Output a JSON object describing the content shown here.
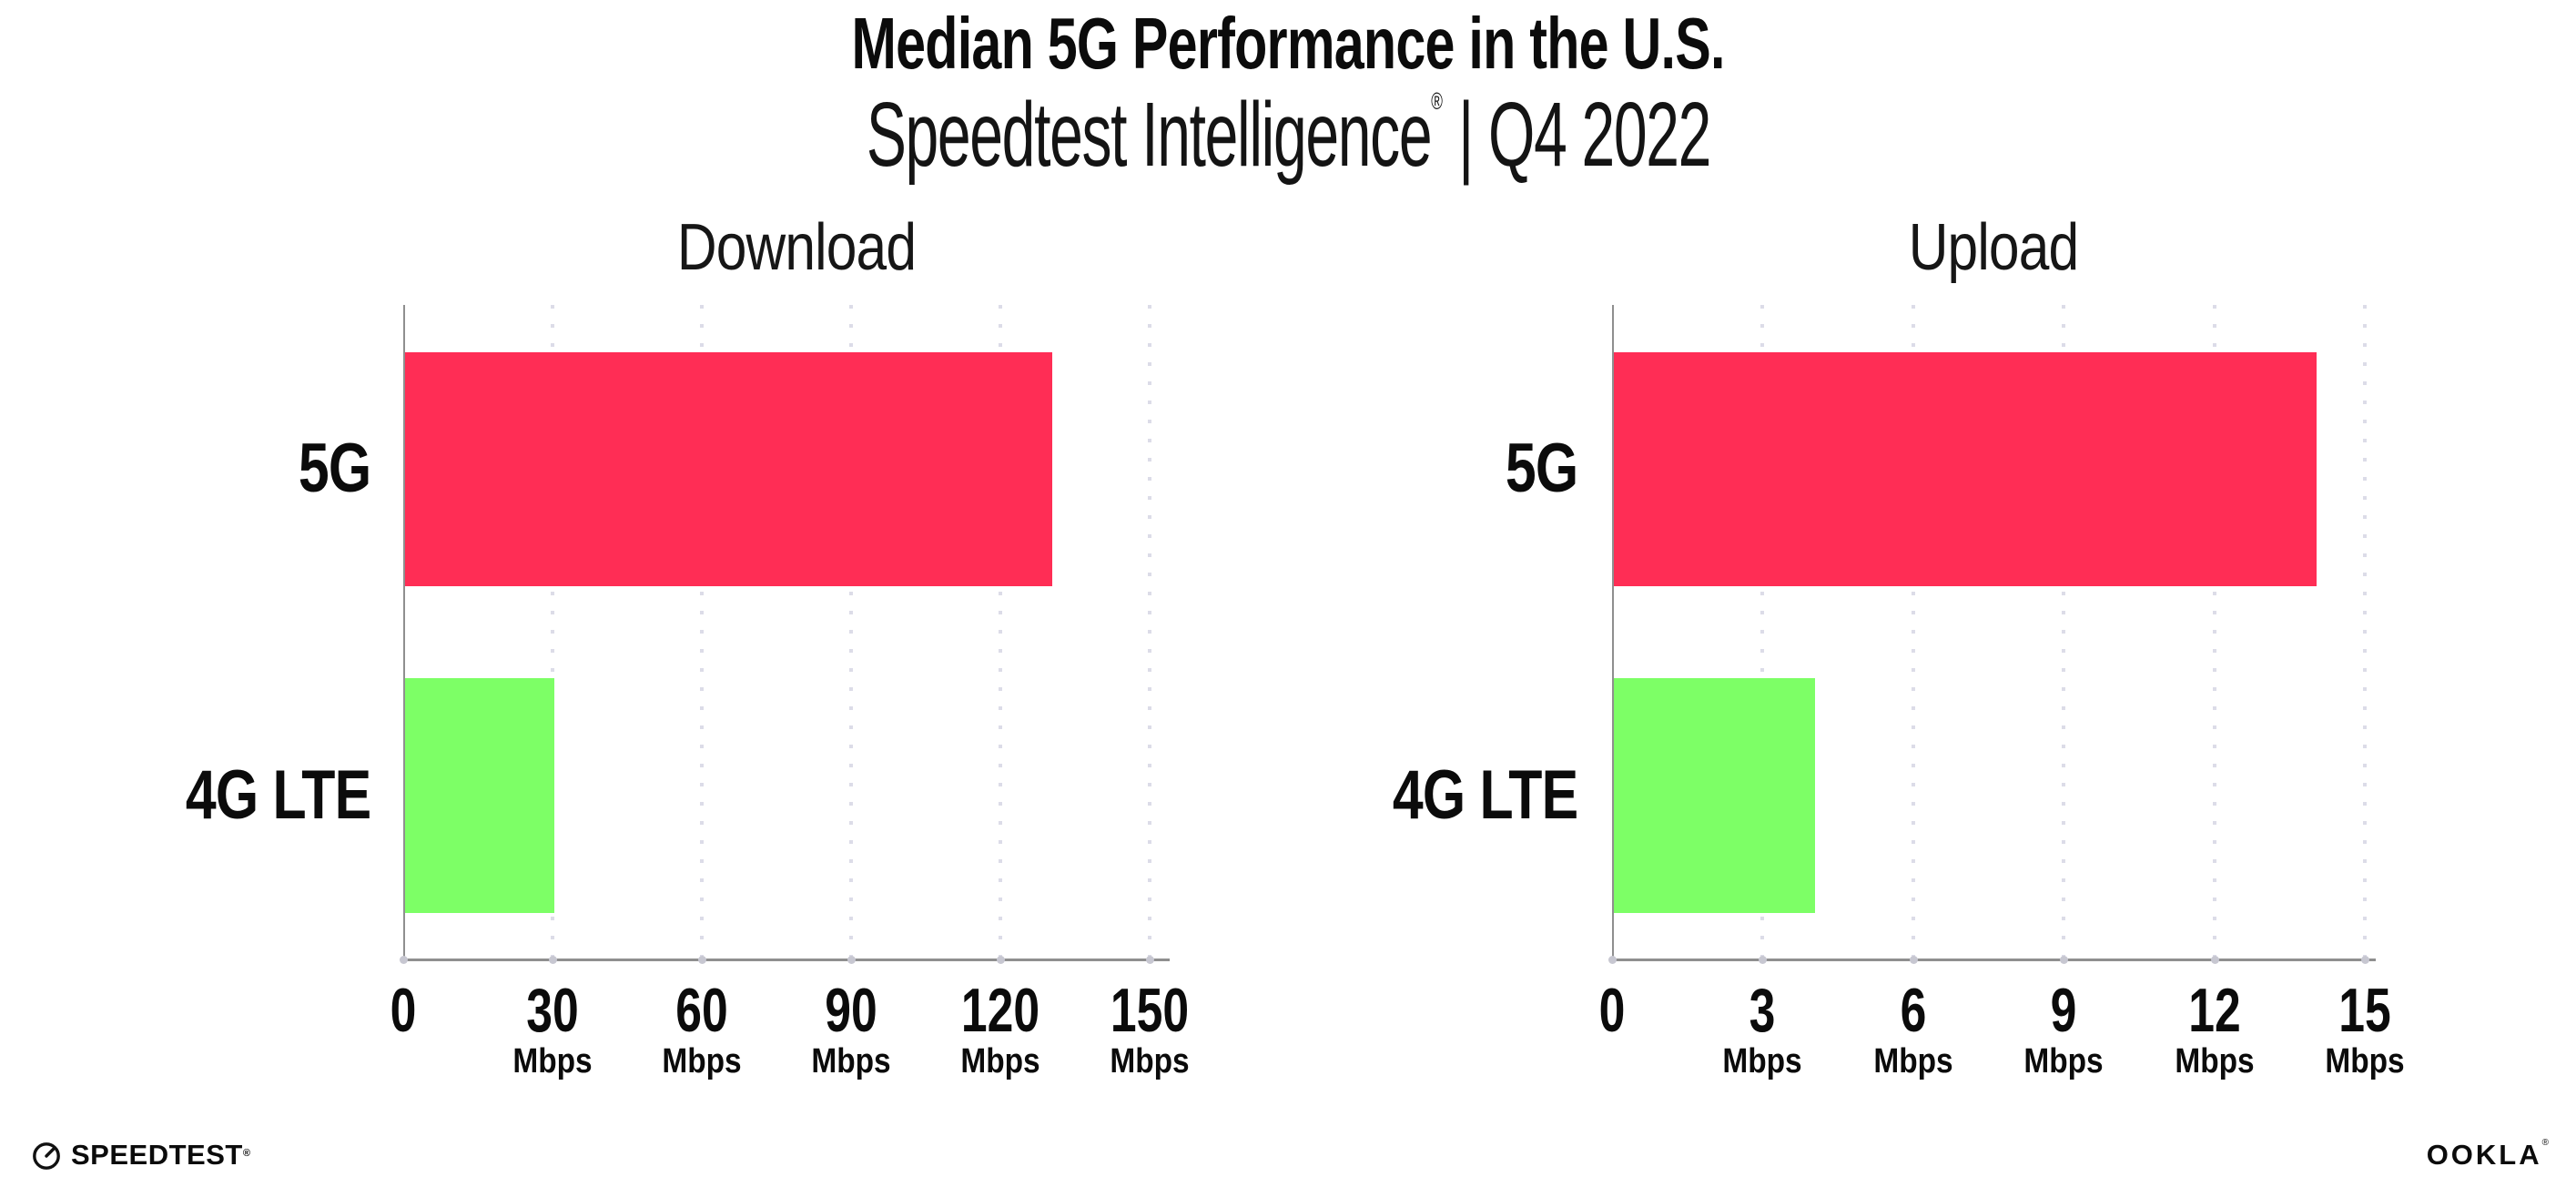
{
  "header": {
    "title": "Median 5G Performance in the U.S.",
    "subtitle_brand": "Speedtest Intelligence",
    "subtitle_reg": "®",
    "subtitle_sep": "|",
    "subtitle_period": "Q4 2022"
  },
  "colors": {
    "bar_5g": "#FF2D55",
    "bar_4g_lte": "#7DFF66",
    "axis": "#8F8F8F",
    "gridline": "#DCDCE8",
    "text": "#0B0B0B"
  },
  "chart_data": [
    {
      "type": "bar",
      "orientation": "horizontal",
      "title": "Download",
      "categories": [
        "5G",
        "4G LTE"
      ],
      "values": [
        130,
        30
      ],
      "unit": "Mbps",
      "xlim": [
        0,
        150
      ],
      "xticks": [
        0,
        30,
        60,
        90,
        120,
        150
      ],
      "grid": "vertical-dotted",
      "legend": "none",
      "bar_colors": [
        "#FF2D55",
        "#7DFF66"
      ]
    },
    {
      "type": "bar",
      "orientation": "horizontal",
      "title": "Upload",
      "categories": [
        "5G",
        "4G LTE"
      ],
      "values": [
        14,
        4
      ],
      "unit": "Mbps",
      "xlim": [
        0,
        15
      ],
      "xticks": [
        0,
        3,
        6,
        9,
        12,
        15
      ],
      "grid": "vertical-dotted",
      "legend": "none",
      "bar_colors": [
        "#FF2D55",
        "#7DFF66"
      ]
    }
  ],
  "footer": {
    "speedtest_label": "SPEEDTEST",
    "speedtest_mark": "®",
    "ookla_label": "OOKLA",
    "ookla_mark": "®"
  }
}
